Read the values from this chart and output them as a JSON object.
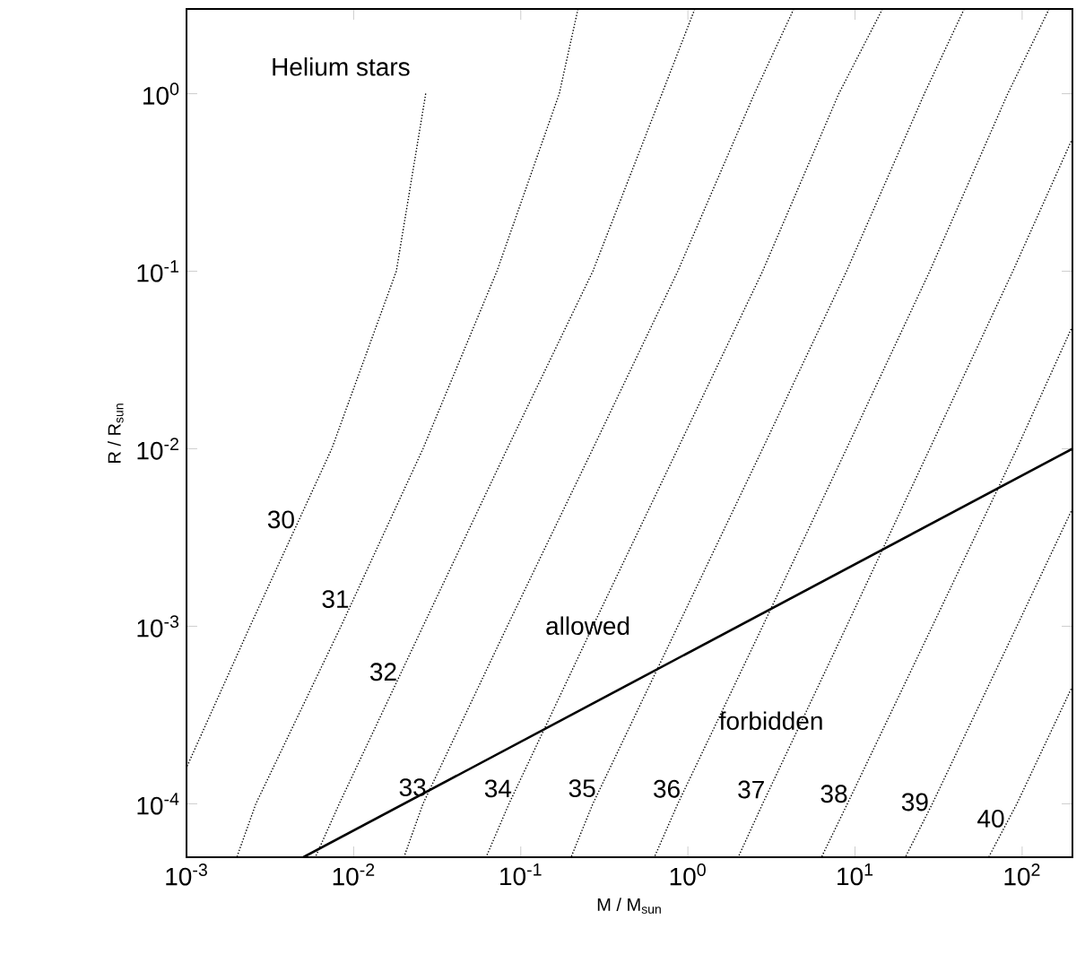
{
  "chart_data": {
    "type": "line",
    "xlabel": "M / M$_{sun}$",
    "ylabel": "R / R$_{sun}$",
    "log": "xy",
    "xlim": [
      0.001,
      200
    ],
    "ylim": [
      5e-05,
      3
    ],
    "xticks": [
      {
        "value": 0.001,
        "label": "10$^{-3}$"
      },
      {
        "value": 0.01,
        "label": "10$^{-2}$"
      },
      {
        "value": 0.1,
        "label": "10$^{-1}$"
      },
      {
        "value": 1,
        "label": "10$^{0}$"
      },
      {
        "value": 10,
        "label": "10$^{1}$"
      },
      {
        "value": 100,
        "label": "10$^{2}$"
      }
    ],
    "yticks": [
      {
        "value": 0.0001,
        "label": "10$^{-4}$"
      },
      {
        "value": 0.001,
        "label": "10$^{-3}$"
      },
      {
        "value": 0.01,
        "label": "10$^{-2}$"
      },
      {
        "value": 0.1,
        "label": "10$^{-1}$"
      },
      {
        "value": 1,
        "label": "10$^{0}$"
      }
    ],
    "series": [
      {
        "name": "30",
        "color": "#000000",
        "line_style": "dotted",
        "x": [
          0.027,
          0.018,
          0.0074,
          0.0024,
          0.001
        ],
        "values": [
          1,
          0.1,
          0.01,
          0.001,
          0.00016
        ]
      },
      {
        "name": "31",
        "color": "#000000",
        "line_style": "dotted",
        "x": [
          0.22,
          0.17,
          0.072,
          0.026,
          0.0084,
          0.0026,
          0.002
        ],
        "values": [
          3,
          1,
          0.1,
          0.01,
          0.001,
          0.0001,
          5e-05
        ]
      },
      {
        "name": "32",
        "color": "#000000",
        "line_style": "dotted",
        "x": [
          1.1,
          0.7,
          0.27,
          0.083,
          0.026,
          0.0082,
          0.0059
        ],
        "values": [
          3,
          1,
          0.1,
          0.01,
          0.001,
          0.0001,
          5e-05
        ]
      },
      {
        "name": "33",
        "color": "#000000",
        "line_style": "dotted",
        "x": [
          4.3,
          2.5,
          0.87,
          0.27,
          0.083,
          0.026,
          0.02
        ],
        "values": [
          3,
          1,
          0.1,
          0.01,
          0.001,
          0.0001,
          5e-05
        ]
      },
      {
        "name": "34",
        "color": "#000000",
        "line_style": "dotted",
        "x": [
          14.6,
          8,
          2.8,
          0.87,
          0.27,
          0.085,
          0.062
        ],
        "values": [
          3,
          1,
          0.1,
          0.01,
          0.001,
          0.0001,
          5e-05
        ]
      },
      {
        "name": "35",
        "color": "#000000",
        "line_style": "dotted",
        "x": [
          45,
          26,
          8.9,
          2.8,
          0.87,
          0.27,
          0.2
        ],
        "values": [
          3,
          1,
          0.1,
          0.01,
          0.001,
          0.0001,
          5e-05
        ]
      },
      {
        "name": "36",
        "color": "#000000",
        "line_style": "dotted",
        "x": [
          145,
          82,
          28,
          8.9,
          2.8,
          0.87,
          0.63
        ],
        "values": [
          3,
          1,
          0.1,
          0.01,
          0.001,
          0.0001,
          5e-05
        ]
      },
      {
        "name": "37",
        "color": "#000000",
        "line_style": "dotted",
        "x": [
          200,
          88,
          28,
          8.9,
          2.8,
          2
        ],
        "values": [
          0.56,
          0.1,
          0.01,
          0.001,
          0.0001,
          5e-05
        ]
      },
      {
        "name": "38",
        "color": "#000000",
        "line_style": "dotted",
        "x": [
          200,
          93,
          29,
          9,
          6.3
        ],
        "values": [
          0.049,
          0.01,
          0.001,
          0.0001,
          5e-05
        ]
      },
      {
        "name": "39",
        "color": "#000000",
        "line_style": "dotted",
        "x": [
          200,
          93,
          29,
          20
        ],
        "values": [
          0.0046,
          0.001,
          0.0001,
          5e-05
        ]
      },
      {
        "name": "40",
        "color": "#000000",
        "line_style": "dotted",
        "x": [
          200,
          93,
          63
        ],
        "values": [
          0.00046,
          0.0001,
          5e-05
        ]
      },
      {
        "color": "#000000",
        "line_style": "solid",
        "x": [
          0.005,
          200
        ],
        "values": [
          5e-05,
          0.01
        ]
      }
    ],
    "annotations": [
      "Helium stars",
      "allowed",
      "forbidden"
    ]
  }
}
